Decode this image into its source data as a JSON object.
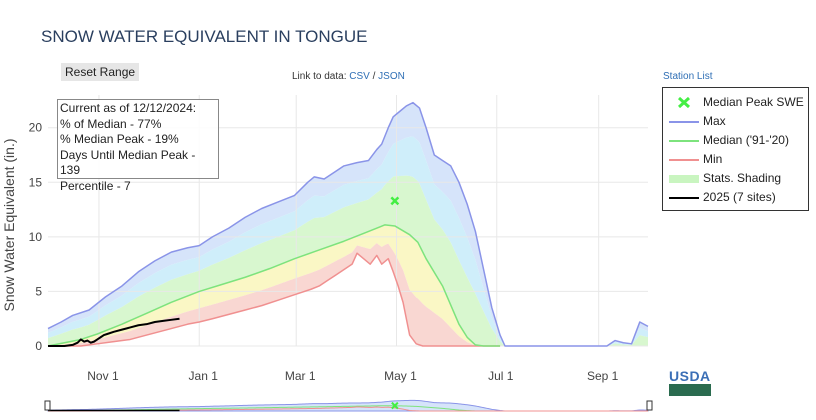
{
  "title": "SNOW WATER EQUIVALENT IN TONGUE",
  "reset_label": "Reset Range",
  "links": {
    "prefix": "Link to data:",
    "csv": "CSV",
    "sep": "/",
    "json": "JSON"
  },
  "station_list": "Station List",
  "info": {
    "line1": "Current as of 12/12/2024:",
    "line2": "% of Median - 77%",
    "line3": "% Median Peak - 19%",
    "line4": "Days Until Median Peak - 139",
    "line5": "Percentile - 7"
  },
  "legend": [
    {
      "label": "Median Peak SWE",
      "kind": "marker",
      "color": "#44ee44"
    },
    {
      "label": "Max",
      "kind": "line",
      "color": "#8a94e8"
    },
    {
      "label": "Median ('91-'20)",
      "kind": "line",
      "color": "#7de37d"
    },
    {
      "label": "Min",
      "kind": "line",
      "color": "#f09090"
    },
    {
      "label": "Stats. Shading",
      "kind": "box",
      "color": "#c9f5c0"
    },
    {
      "label": "2025 (7 sites)",
      "kind": "line",
      "color": "#000000"
    }
  ],
  "colors": {
    "max": "#8a94e8",
    "median": "#7de37d",
    "min": "#f09090",
    "current": "#000000",
    "band_max": "#d6e4fa",
    "band_high": "#cfeefa",
    "band_mid": "#d8f7cf",
    "band_low": "#faf7c5",
    "band_min": "#f9d7d2",
    "peak_marker": "#44ee44"
  },
  "usda_label": "USDA",
  "chart_data": {
    "type": "area",
    "ylabel": "Snow Water Equivalent (in.)",
    "xlabel": "",
    "ylim": [
      0,
      23
    ],
    "xlim_days": [
      0,
      365
    ],
    "y_ticks": [
      0,
      5,
      10,
      15,
      20
    ],
    "x_ticks": [
      {
        "label": "Nov 1",
        "day": 31
      },
      {
        "label": "Jan 1",
        "day": 92
      },
      {
        "label": "Mar 1",
        "day": 151
      },
      {
        "label": "May 1",
        "day": 212
      },
      {
        "label": "Jul 1",
        "day": 273
      },
      {
        "label": "Sep 1",
        "day": 335
      }
    ],
    "x_origin": "Oct 1 (day 0)",
    "median_peak": {
      "day": 211,
      "value": 13.3
    },
    "series": [
      {
        "name": "Max",
        "x": [
          0,
          8,
          15,
          25,
          35,
          45,
          55,
          65,
          75,
          85,
          92,
          100,
          110,
          120,
          130,
          140,
          150,
          158,
          162,
          168,
          175,
          180,
          188,
          195,
          200,
          203,
          207,
          210,
          214,
          218,
          222,
          226,
          230,
          235,
          240,
          245,
          250,
          255,
          260,
          265,
          270,
          275,
          278,
          285,
          300,
          320,
          335,
          340,
          345,
          350,
          355,
          360,
          365
        ],
        "values": [
          1.6,
          2.2,
          2.8,
          3.3,
          4.5,
          5.5,
          6.8,
          7.8,
          8.6,
          9.0,
          9.2,
          10.0,
          10.8,
          11.8,
          12.6,
          13.2,
          13.8,
          15.0,
          15.5,
          15.3,
          16.0,
          16.5,
          16.8,
          17.0,
          18.0,
          18.5,
          20.0,
          21.0,
          21.5,
          22.0,
          22.3,
          21.8,
          20.0,
          17.5,
          17.0,
          16.5,
          15.0,
          13.0,
          10.5,
          7.0,
          3.5,
          1.0,
          0,
          0,
          0,
          0,
          0,
          0,
          0.5,
          0.3,
          0.2,
          2.2,
          1.8
        ]
      },
      {
        "name": "Median ('91-'20)",
        "x": [
          0,
          10,
          20,
          30,
          45,
          60,
          75,
          92,
          105,
          120,
          135,
          150,
          165,
          180,
          195,
          205,
          211,
          220,
          225,
          230,
          240,
          250,
          255,
          260,
          265,
          270,
          275
        ],
        "values": [
          0,
          0.3,
          0.6,
          1.1,
          2.0,
          3.0,
          4.0,
          5.0,
          5.6,
          6.3,
          7.1,
          8.0,
          8.8,
          9.6,
          10.5,
          11.1,
          11.0,
          10.2,
          9.5,
          8.0,
          5.5,
          2.0,
          0.8,
          0.1,
          0,
          0,
          0
        ]
      },
      {
        "name": "Min",
        "x": [
          0,
          20,
          30,
          40,
          50,
          60,
          75,
          85,
          92,
          100,
          110,
          120,
          130,
          140,
          150,
          160,
          165,
          170,
          175,
          180,
          185,
          188,
          192,
          196,
          200,
          203,
          207,
          210,
          213,
          216,
          218,
          220,
          224,
          228,
          235,
          240,
          275
        ],
        "values": [
          0,
          0,
          0.2,
          0.4,
          0.6,
          1.0,
          1.6,
          2.0,
          2.2,
          2.5,
          2.9,
          3.3,
          3.7,
          4.2,
          4.7,
          5.2,
          5.5,
          6.0,
          6.5,
          7.0,
          7.5,
          8.5,
          8.0,
          7.5,
          8.3,
          7.5,
          8.0,
          6.8,
          5.5,
          4.0,
          2.5,
          1.0,
          0.2,
          0,
          0,
          0,
          0
        ]
      },
      {
        "name": "2025 (7 sites)",
        "x": [
          0,
          5,
          10,
          15,
          18,
          20,
          22,
          24,
          26,
          28,
          30,
          32,
          34,
          36,
          40,
          45,
          50,
          55,
          60,
          65,
          70,
          75,
          80
        ],
        "values": [
          0,
          0,
          0,
          0.1,
          0.3,
          0.6,
          0.4,
          0.5,
          0.3,
          0.4,
          0.6,
          0.8,
          1.0,
          1.1,
          1.3,
          1.5,
          1.7,
          1.9,
          2.0,
          2.2,
          2.3,
          2.4,
          2.5
        ]
      }
    ]
  }
}
